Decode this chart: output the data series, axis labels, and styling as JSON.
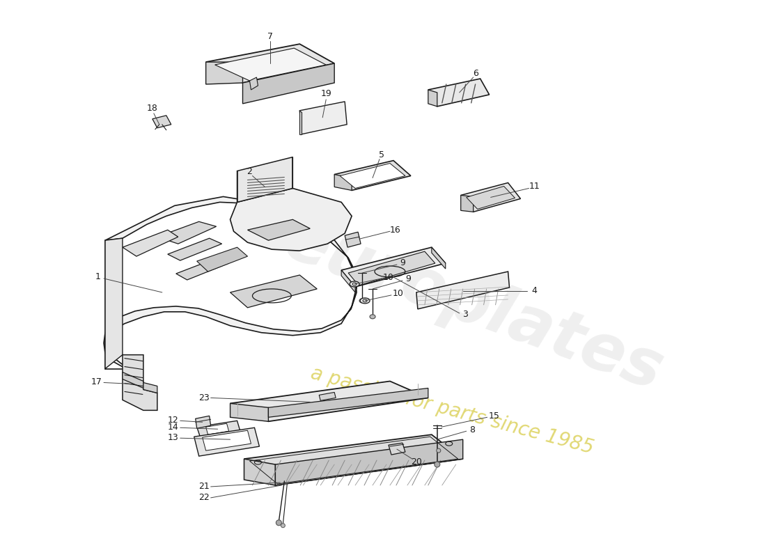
{
  "background_color": "#ffffff",
  "line_color": "#1a1a1a",
  "watermark1": "europlates",
  "watermark2": "a passion for parts since 1985",
  "fig_width": 11.0,
  "fig_height": 8.0,
  "dpi": 100
}
